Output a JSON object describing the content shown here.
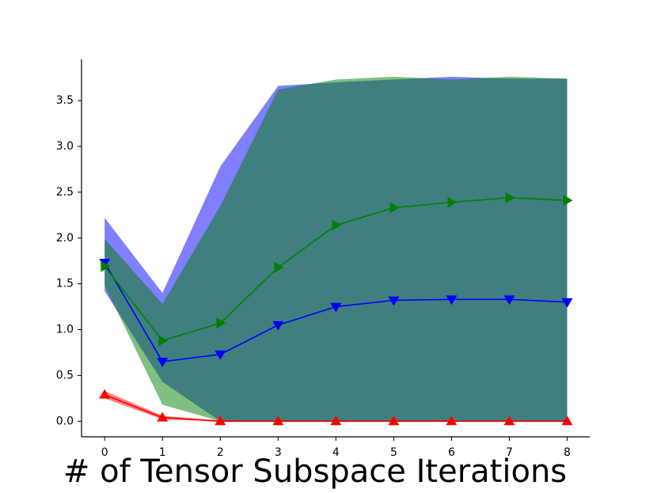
{
  "chart_data": {
    "type": "line",
    "x_label": "# of Tensor Subspace Iterations",
    "x": [
      0,
      1,
      2,
      3,
      4,
      5,
      6,
      7,
      8
    ],
    "xlim": [
      -0.4,
      8.39
    ],
    "xticks": [
      0,
      1,
      2,
      3,
      4,
      5,
      6,
      7,
      8
    ],
    "ylim": [
      -0.17,
      3.95
    ],
    "yticks": [
      {
        "value": 0,
        "label": "0.0"
      },
      0.5,
      {
        "value": 1,
        "label": "1.0"
      },
      1.5,
      {
        "value": 2,
        "label": "2.0"
      },
      2.5,
      {
        "value": 3,
        "label": "3.0"
      },
      3.5
    ],
    "series": [
      {
        "color": "#ff0000",
        "marker": "triangle-up",
        "values": [
          0.29,
          0.04,
          0,
          0,
          0,
          0,
          0,
          0,
          0
        ],
        "lower": [
          0.25,
          0.02,
          0,
          0,
          0,
          0,
          0,
          0,
          0
        ],
        "upper": [
          0.33,
          0.06,
          0.01,
          0.01,
          0.01,
          0.01,
          0.01,
          0.01,
          0.01
        ]
      },
      {
        "color": "#0000ff",
        "marker": "triangle-down",
        "values": [
          1.73,
          0.65,
          0.73,
          1.05,
          1.25,
          1.32,
          1.33,
          1.33,
          1.3
        ],
        "lower": [
          1.42,
          0.43,
          0,
          0,
          0,
          0,
          0,
          0,
          0
        ],
        "upper": [
          2.22,
          1.4,
          2.78,
          3.66,
          3.7,
          3.73,
          3.76,
          3.74,
          3.74
        ]
      },
      {
        "color": "#008000",
        "marker": "triangle-right",
        "values": [
          1.69,
          0.88,
          1.07,
          1.68,
          2.14,
          2.33,
          2.39,
          2.44,
          2.41
        ],
        "lower": [
          1.48,
          0.18,
          0,
          0,
          0,
          0,
          0,
          0,
          0
        ],
        "upper": [
          1.99,
          1.28,
          2.35,
          3.62,
          3.73,
          3.76,
          3.73,
          3.76,
          3.74
        ]
      }
    ]
  }
}
